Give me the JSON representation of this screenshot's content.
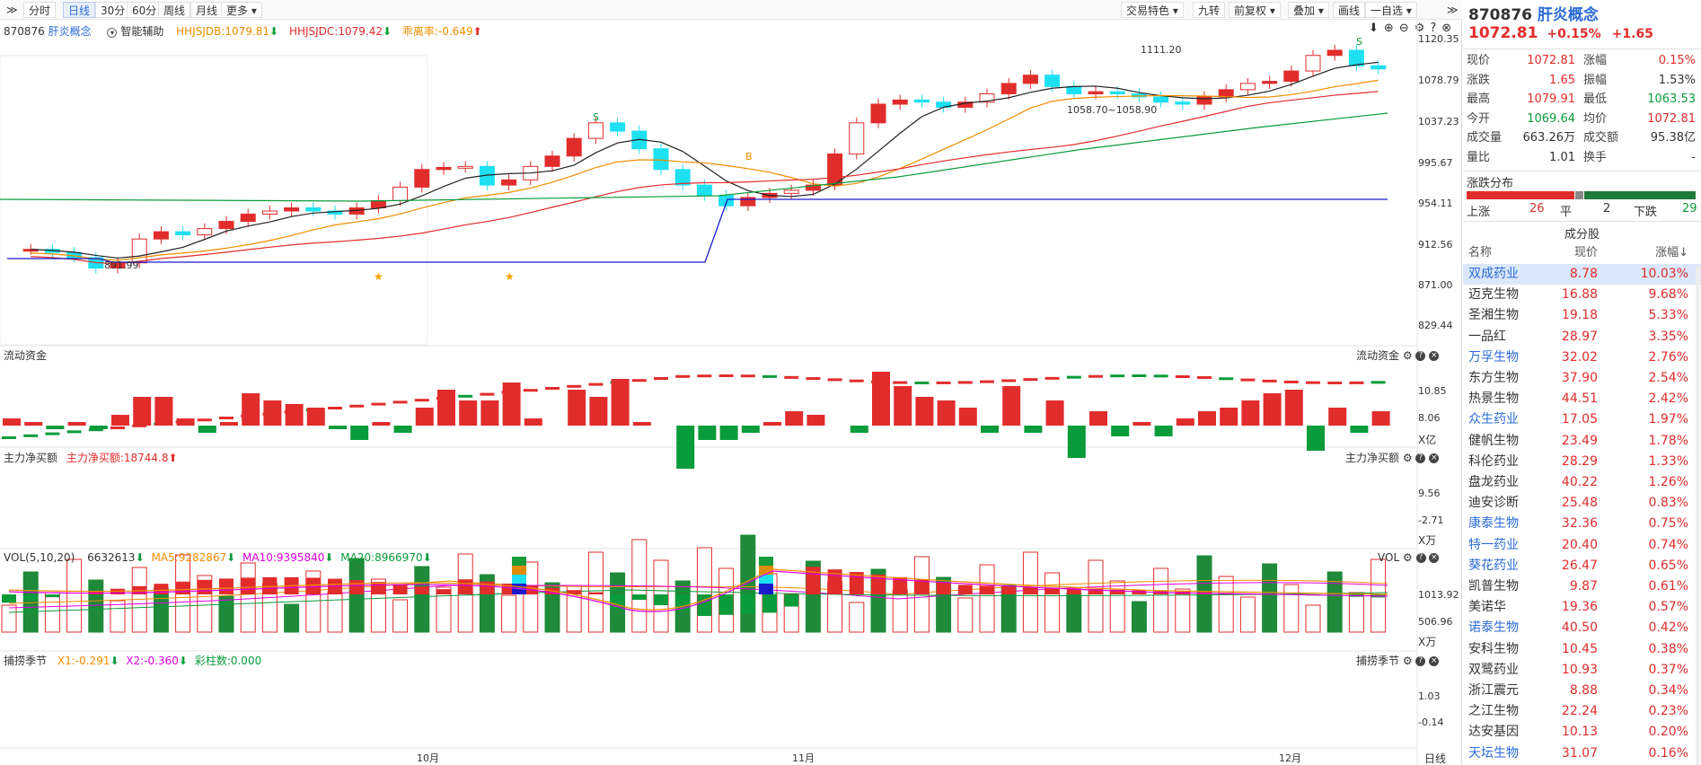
{
  "toolbar": {
    "expand_glyph": "≫",
    "periods": [
      "分时",
      "日线",
      "30分",
      "60分",
      "周线",
      "月线",
      "更多"
    ],
    "active_period": "日线",
    "right_items": [
      "交易特色",
      "九转",
      "前复权",
      "叠加",
      "画线"
    ],
    "watch_button": "一自选",
    "collapse_glyph": "≫"
  },
  "main": {
    "code": "870876",
    "name": "肝炎概念",
    "assist": "智能辅助",
    "hhjsjdb": "HHJSJDB:1079.81",
    "hhjsjdc": "HHJSJDC:1079.42",
    "chl": "乖离率:-0.649",
    "price_labels": [
      "1120.35",
      "1078.79",
      "1037.23",
      "995.67",
      "954.11",
      "912.56",
      "871.00",
      "829.44"
    ],
    "annotations": {
      "high": "1111.20",
      "low": "891.99",
      "mid": "1058.70~1058.90"
    },
    "signal_labels": {
      "sell": "S",
      "buy": "B"
    }
  },
  "panels": {
    "liquidity": {
      "title": "流动资金",
      "right_title": "流动资金",
      "labels": [
        "10.85",
        "8.06"
      ],
      "unit": "X亿"
    },
    "netbuy": {
      "title": "主力净买额",
      "value": "主力净买额:18744.8",
      "right_title": "主力净买额",
      "labels": [
        "9.56",
        "-2.71"
      ],
      "unit": "X万"
    },
    "vol": {
      "title": "VOL(5,10,20)",
      "v": "6632613",
      "ma5": "MA5:9282867",
      "ma10": "MA10:9395840",
      "ma20": "MA20:8966970",
      "right_title": "VOL",
      "labels": [
        "1013.92",
        "506.96"
      ],
      "unit": "X万"
    },
    "season": {
      "title": "捕捞季节",
      "x1": "X1:-0.291",
      "x2": "X2:-0.360",
      "bars": "彩柱数:0.000",
      "right_title": "捕捞季节",
      "labels": [
        "1.03",
        "-0.14"
      ]
    }
  },
  "x_axis": {
    "months": [
      "10月",
      "11月",
      "12月"
    ],
    "period": "日线"
  },
  "side": {
    "code": "870876",
    "name": "肝炎概念",
    "price": "1072.81",
    "change_pct": "+0.15%",
    "change": "+1.65",
    "quote": [
      {
        "l1": "现价",
        "v1": "1072.81",
        "l2": "涨幅",
        "v2": "0.15%"
      },
      {
        "l1": "涨跌",
        "v1": "1.65",
        "l2": "振幅",
        "v2": "1.53%"
      },
      {
        "l1": "最高",
        "v1": "1079.91",
        "l2": "最低",
        "v2": "1063.53"
      },
      {
        "l1": "今开",
        "v1": "1069.64",
        "l2": "均价",
        "v2": "1072.81"
      },
      {
        "l1": "成交量",
        "v1": "663.26万",
        "l2": "成交额",
        "v2": "95.38亿"
      },
      {
        "l1": "量比",
        "v1": "1.01",
        "l2": "换手",
        "v2": "-"
      }
    ],
    "dist_title": "涨跌分布",
    "dist": {
      "up_label": "上涨",
      "up": "26",
      "flat_label": "平",
      "flat": "2",
      "down_label": "下跌",
      "down": "29"
    },
    "components_title": "成分股",
    "col_headers": [
      "名称",
      "现价",
      "涨幅↓"
    ],
    "stocks": [
      {
        "name": "双成药业",
        "price": "8.78",
        "pct": "10.03%",
        "blue": true
      },
      {
        "name": "迈克生物",
        "price": "16.88",
        "pct": "9.68%",
        "blue": false
      },
      {
        "name": "圣湘生物",
        "price": "19.18",
        "pct": "5.33%",
        "blue": false
      },
      {
        "name": "一品红",
        "price": "28.97",
        "pct": "3.35%",
        "blue": false
      },
      {
        "name": "万孚生物",
        "price": "32.02",
        "pct": "2.76%",
        "blue": true
      },
      {
        "name": "东方生物",
        "price": "37.90",
        "pct": "2.54%",
        "blue": false
      },
      {
        "name": "热景生物",
        "price": "44.51",
        "pct": "2.42%",
        "blue": false
      },
      {
        "name": "众生药业",
        "price": "17.05",
        "pct": "1.97%",
        "blue": true
      },
      {
        "name": "健帆生物",
        "price": "23.49",
        "pct": "1.78%",
        "blue": false
      },
      {
        "name": "科伦药业",
        "price": "28.29",
        "pct": "1.33%",
        "blue": false
      },
      {
        "name": "盘龙药业",
        "price": "40.22",
        "pct": "1.26%",
        "blue": false
      },
      {
        "name": "迪安诊断",
        "price": "25.48",
        "pct": "0.83%",
        "blue": false
      },
      {
        "name": "康泰生物",
        "price": "32.36",
        "pct": "0.75%",
        "blue": true
      },
      {
        "name": "特一药业",
        "price": "20.40",
        "pct": "0.74%",
        "blue": true
      },
      {
        "name": "葵花药业",
        "price": "26.47",
        "pct": "0.65%",
        "blue": true
      },
      {
        "name": "凯普生物",
        "price": "9.87",
        "pct": "0.61%",
        "blue": false
      },
      {
        "name": "美诺华",
        "price": "19.36",
        "pct": "0.57%",
        "blue": false
      },
      {
        "name": "诺泰生物",
        "price": "40.50",
        "pct": "0.42%",
        "blue": true
      },
      {
        "name": "安科生物",
        "price": "10.45",
        "pct": "0.38%",
        "blue": false
      },
      {
        "name": "双鹭药业",
        "price": "10.93",
        "pct": "0.37%",
        "blue": false
      },
      {
        "name": "浙江震元",
        "price": "8.88",
        "pct": "0.34%",
        "blue": false
      },
      {
        "name": "之江生物",
        "price": "22.24",
        "pct": "0.23%",
        "blue": false
      },
      {
        "name": "达安基因",
        "price": "10.13",
        "pct": "0.20%",
        "blue": false
      },
      {
        "name": "天坛生物",
        "price": "31.07",
        "pct": "0.16%",
        "blue": true
      }
    ]
  },
  "colors": {
    "up": "#e12c2c",
    "down": "#0a9b3a",
    "blue_line": "#1a1acc",
    "ma_orange": "#f08c00",
    "ma_pink": "#e000e0",
    "cyan": "#1ee0f0"
  }
}
